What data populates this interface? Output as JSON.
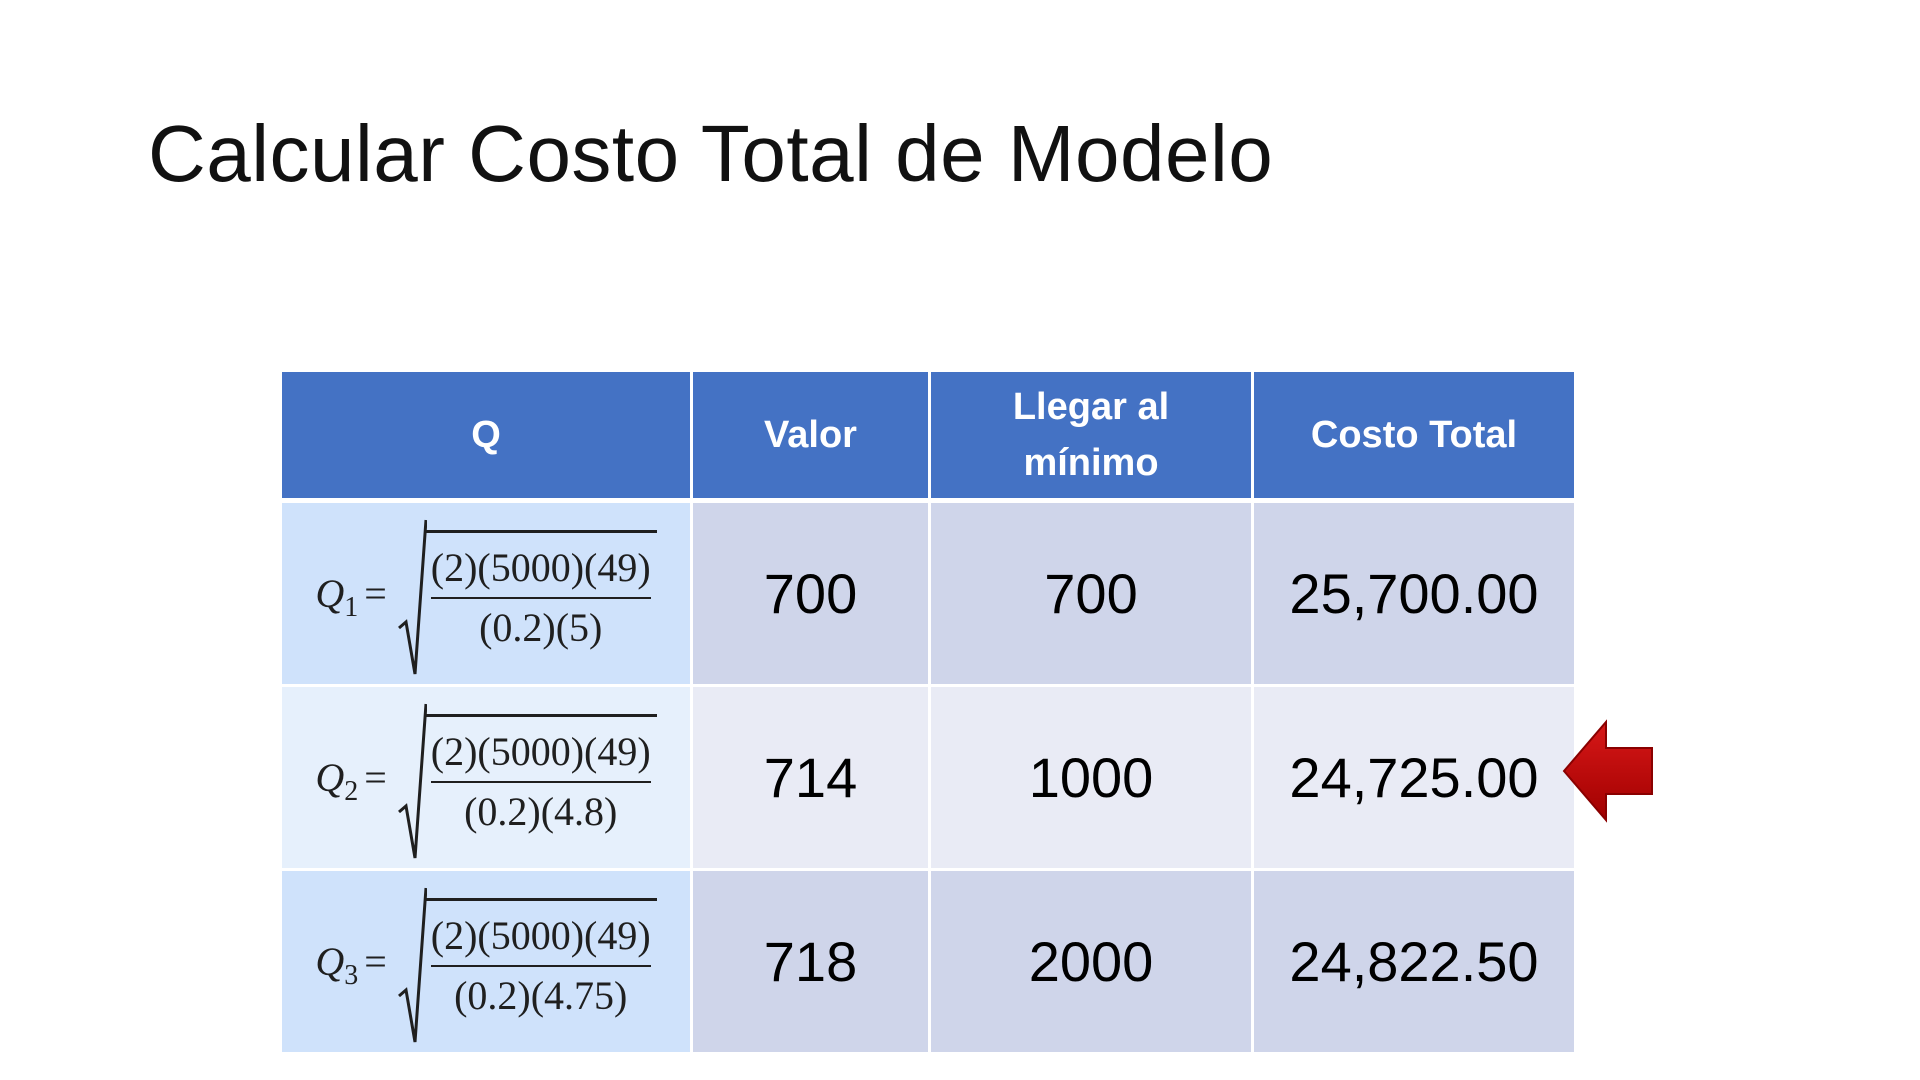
{
  "title": "Calcular Costo Total de Modelo",
  "table": {
    "headers": [
      "Q",
      "Valor",
      "Llegar al\nmínimo",
      "Costo Total"
    ],
    "rows": [
      {
        "q_symbol": "Q",
        "q_subscript": "1",
        "q_equals": "=",
        "numerator": "(2)(5000)(49)",
        "denominator": "(0.2)(5)",
        "valor": "700",
        "llegar": "700",
        "costo": "25,700.00"
      },
      {
        "q_symbol": "Q",
        "q_subscript": "2",
        "q_equals": "=",
        "numerator": "(2)(5000)(49)",
        "denominator": "(0.2)(4.8)",
        "valor": "714",
        "llegar": "1000",
        "costo": "24,725.00"
      },
      {
        "q_symbol": "Q",
        "q_subscript": "3",
        "q_equals": "=",
        "numerator": "(2)(5000)(49)",
        "denominator": "(0.2)(4.75)",
        "valor": "718",
        "llegar": "2000",
        "costo": "24,822.50"
      }
    ]
  },
  "colors": {
    "header_bg": "#4472c4",
    "row_dark": "#cfd5ea",
    "row_light": "#e9ebf5",
    "formula_dark": "#cfe2fb",
    "formula_light": "#e6f0fc",
    "arrow": "#c00000"
  },
  "icons": {
    "arrow": "left-arrow-icon"
  }
}
